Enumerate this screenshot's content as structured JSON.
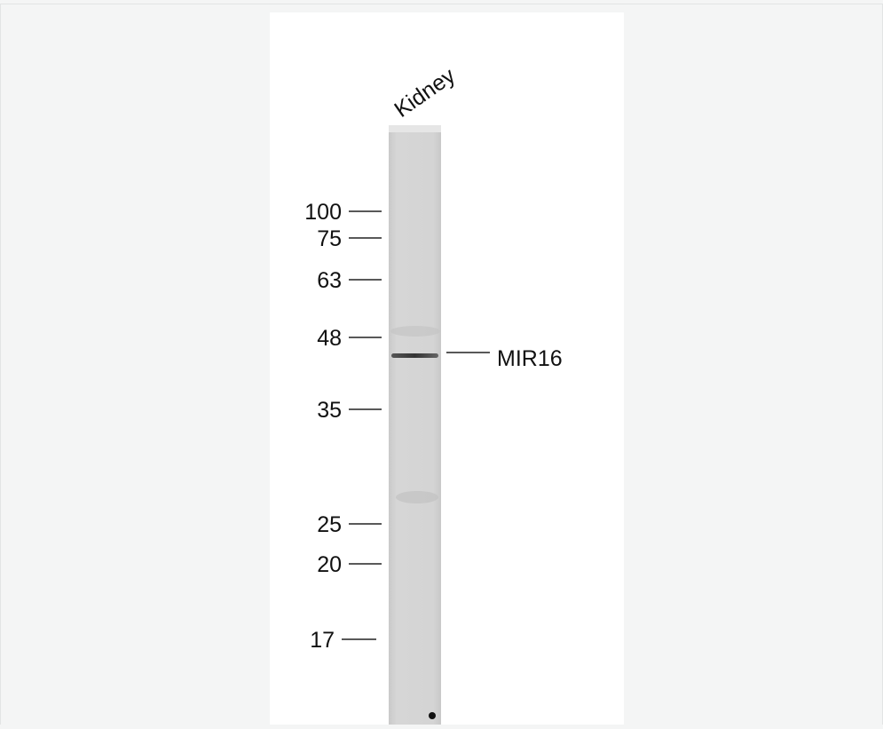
{
  "lane_label": "Kidney",
  "markers": [
    100,
    75,
    63,
    48,
    35,
    25,
    20,
    17
  ],
  "band_label": "MIR16"
}
